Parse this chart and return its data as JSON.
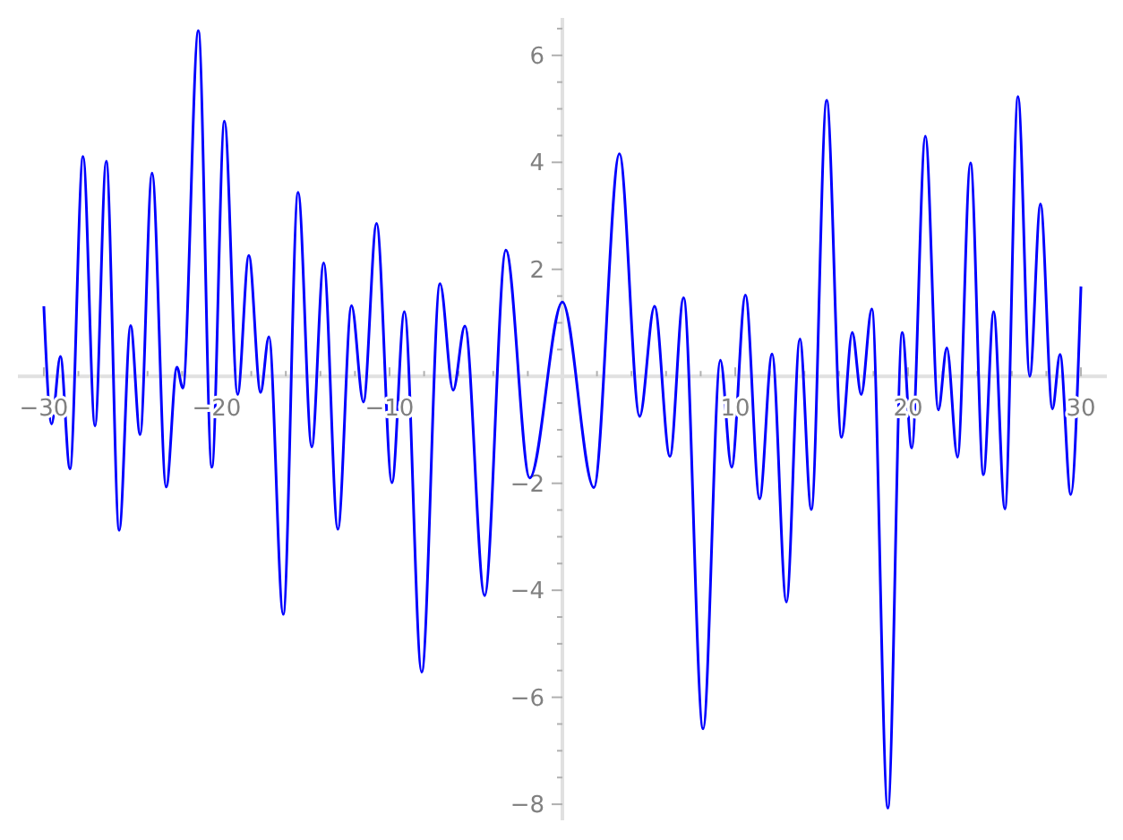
{
  "chart_data": {
    "type": "line",
    "xlim": [
      -31.5,
      31.5
    ],
    "ylim": [
      -8.3,
      6.7
    ],
    "xticks": [
      {
        "value": -30,
        "label": "−30"
      },
      {
        "value": -28,
        "label": null
      },
      {
        "value": -26,
        "label": null
      },
      {
        "value": -24,
        "label": null
      },
      {
        "value": -22,
        "label": null
      },
      {
        "value": -20,
        "label": "−20"
      },
      {
        "value": -18,
        "label": null
      },
      {
        "value": -16,
        "label": null
      },
      {
        "value": -14,
        "label": null
      },
      {
        "value": -12,
        "label": null
      },
      {
        "value": -10,
        "label": "−10"
      },
      {
        "value": -8,
        "label": null
      },
      {
        "value": -6,
        "label": null
      },
      {
        "value": -4,
        "label": null
      },
      {
        "value": -2,
        "label": null
      },
      {
        "value": 2,
        "label": null
      },
      {
        "value": 4,
        "label": null
      },
      {
        "value": 6,
        "label": null
      },
      {
        "value": 8,
        "label": null
      },
      {
        "value": 10,
        "label": "10"
      },
      {
        "value": 12,
        "label": null
      },
      {
        "value": 14,
        "label": null
      },
      {
        "value": 16,
        "label": null
      },
      {
        "value": 18,
        "label": null
      },
      {
        "value": 20,
        "label": "20"
      },
      {
        "value": 22,
        "label": null
      },
      {
        "value": 24,
        "label": null
      },
      {
        "value": 26,
        "label": null
      },
      {
        "value": 28,
        "label": null
      },
      {
        "value": 30,
        "label": "30"
      }
    ],
    "yticks": [
      {
        "value": -8,
        "label": "−8"
      },
      {
        "value": -7.5,
        "label": null
      },
      {
        "value": -7,
        "label": null
      },
      {
        "value": -6.5,
        "label": null
      },
      {
        "value": -6,
        "label": "−6"
      },
      {
        "value": -5.5,
        "label": null
      },
      {
        "value": -5,
        "label": null
      },
      {
        "value": -4.5,
        "label": null
      },
      {
        "value": -4,
        "label": "−4"
      },
      {
        "value": -3.5,
        "label": null
      },
      {
        "value": -3,
        "label": null
      },
      {
        "value": -2.5,
        "label": null
      },
      {
        "value": -2,
        "label": "−2"
      },
      {
        "value": -1.5,
        "label": null
      },
      {
        "value": -1,
        "label": null
      },
      {
        "value": -0.5,
        "label": null
      },
      {
        "value": 0.5,
        "label": null
      },
      {
        "value": 1,
        "label": null
      },
      {
        "value": 1.5,
        "label": null
      },
      {
        "value": 2,
        "label": "2"
      },
      {
        "value": 2.5,
        "label": null
      },
      {
        "value": 3,
        "label": null
      },
      {
        "value": 3.5,
        "label": null
      },
      {
        "value": 4,
        "label": "4"
      },
      {
        "value": 4.5,
        "label": null
      },
      {
        "value": 5,
        "label": null
      },
      {
        "value": 5.5,
        "label": null
      },
      {
        "value": 6,
        "label": "6"
      },
      {
        "value": 6.5,
        "label": null
      }
    ],
    "grid": false,
    "marker": "none",
    "line_style": "solid",
    "series": [
      {
        "color": "#0000ff",
        "x": [
          -30,
          -29.55,
          -29.04,
          -28.49,
          -27.73,
          -27.04,
          -26.39,
          -25.64,
          -24.98,
          -24.43,
          -23.74,
          -22.92,
          -22.3,
          -21.96,
          -21.06,
          -20.28,
          -19.55,
          -18.79,
          -18.14,
          -17.46,
          -16.98,
          -16.15,
          -15.29,
          -14.5,
          -13.81,
          -12.99,
          -12.2,
          -11.51,
          -10.75,
          -9.86,
          -9.14,
          -8.14,
          -7.08,
          -6.32,
          -5.64,
          -4.5,
          -3.27,
          -1.89,
          0,
          1.82,
          3.3,
          4.47,
          5.33,
          6.22,
          7.01,
          8.14,
          9.14,
          9.79,
          10.59,
          11.41,
          12.13,
          12.96,
          13.74,
          14.4,
          15.29,
          16.15,
          16.77,
          17.29,
          17.9,
          18.83,
          19.66,
          20.21,
          21,
          21.75,
          22.24,
          22.86,
          23.61,
          24.36,
          24.95,
          25.6,
          26.36,
          27.04,
          27.66,
          28.35,
          28.79,
          29.41,
          30
        ],
        "values": [
          1.31,
          -0.89,
          0.37,
          -1.73,
          4.11,
          -0.93,
          4.02,
          -2.88,
          0.95,
          -1.09,
          3.8,
          -2.07,
          0.17,
          -0.22,
          6.46,
          -1.7,
          4.77,
          -0.34,
          2.26,
          -0.3,
          0.74,
          -4.45,
          3.44,
          -1.32,
          2.12,
          -2.86,
          1.32,
          -0.48,
          2.86,
          -1.99,
          1.21,
          -5.53,
          1.73,
          -0.26,
          0.94,
          -4.1,
          2.36,
          -1.9,
          1.39,
          -2.08,
          4.16,
          -0.75,
          1.31,
          -1.5,
          1.47,
          -6.59,
          0.3,
          -1.7,
          1.52,
          -2.29,
          0.42,
          -4.22,
          0.7,
          -2.49,
          5.16,
          -1.14,
          0.82,
          -0.34,
          1.26,
          -8.07,
          0.82,
          -1.34,
          4.49,
          -0.63,
          0.53,
          -1.51,
          3.99,
          -1.84,
          1.21,
          -2.48,
          5.23,
          0,
          3.22,
          -0.61,
          0.41,
          -2.21,
          1.68
        ]
      }
    ]
  }
}
